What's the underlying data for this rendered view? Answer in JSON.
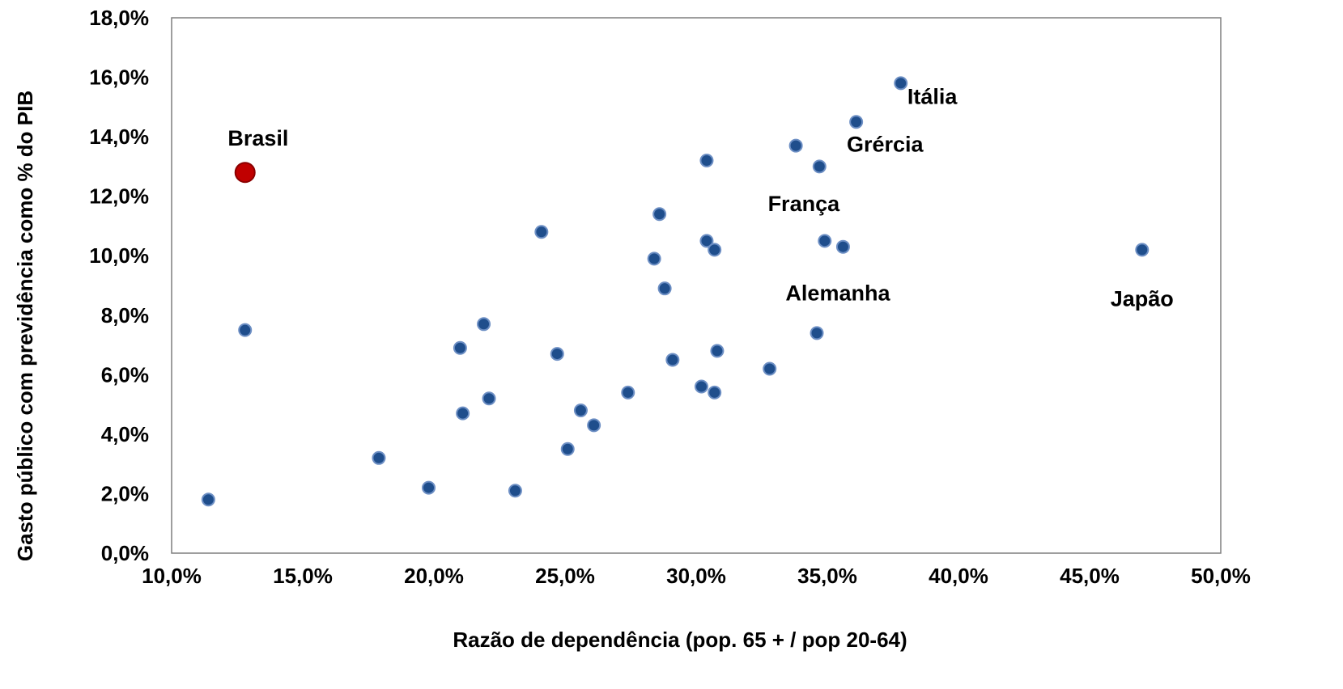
{
  "chart_data": {
    "type": "scatter",
    "xlabel": "Razão de dependência (pop. 65 + / pop 20-64)",
    "ylabel": "Gasto público com previdência como % do PIB",
    "xlim": [
      10,
      50
    ],
    "ylim": [
      0,
      18
    ],
    "x_ticks": [
      "10,0%",
      "15,0%",
      "20,0%",
      "25,0%",
      "30,0%",
      "35,0%",
      "40,0%",
      "45,0%",
      "50,0%"
    ],
    "y_ticks": [
      "0,0%",
      "2,0%",
      "4,0%",
      "6,0%",
      "8,0%",
      "10,0%",
      "12,0%",
      "14,0%",
      "16,0%",
      "18,0%"
    ],
    "grid": false,
    "colors": {
      "default": "#1f4e8c",
      "highlight": "#c00000",
      "outline": "#6d8fc4",
      "frame": "#7f7f7f"
    },
    "points": [
      {
        "x": 11.4,
        "y": 1.8
      },
      {
        "x": 12.8,
        "y": 12.8,
        "label": "Brasil",
        "highlight": true
      },
      {
        "x": 12.8,
        "y": 7.5
      },
      {
        "x": 17.9,
        "y": 3.2
      },
      {
        "x": 19.8,
        "y": 2.2
      },
      {
        "x": 21.0,
        "y": 6.9
      },
      {
        "x": 21.1,
        "y": 4.7
      },
      {
        "x": 21.9,
        "y": 7.7
      },
      {
        "x": 22.1,
        "y": 5.2
      },
      {
        "x": 23.1,
        "y": 2.1
      },
      {
        "x": 24.1,
        "y": 10.8
      },
      {
        "x": 24.7,
        "y": 6.7
      },
      {
        "x": 25.1,
        "y": 3.5
      },
      {
        "x": 25.6,
        "y": 4.8
      },
      {
        "x": 26.1,
        "y": 4.3
      },
      {
        "x": 27.4,
        "y": 5.4
      },
      {
        "x": 28.4,
        "y": 9.9
      },
      {
        "x": 28.6,
        "y": 11.4
      },
      {
        "x": 28.8,
        "y": 8.9
      },
      {
        "x": 29.1,
        "y": 6.5
      },
      {
        "x": 30.2,
        "y": 5.6
      },
      {
        "x": 30.4,
        "y": 13.2
      },
      {
        "x": 30.4,
        "y": 10.5
      },
      {
        "x": 30.7,
        "y": 5.4
      },
      {
        "x": 30.7,
        "y": 10.2
      },
      {
        "x": 30.8,
        "y": 6.8
      },
      {
        "x": 32.8,
        "y": 6.2
      },
      {
        "x": 33.8,
        "y": 13.7
      },
      {
        "x": 34.6,
        "y": 7.4
      },
      {
        "x": 34.7,
        "y": 13.0
      },
      {
        "x": 34.9,
        "y": 10.5
      },
      {
        "x": 35.6,
        "y": 10.3
      },
      {
        "x": 36.1,
        "y": 14.5
      },
      {
        "x": 37.8,
        "y": 15.8
      },
      {
        "x": 47.0,
        "y": 10.2
      }
    ],
    "annotations": [
      {
        "text": "Brasil",
        "x": 13.3,
        "y": 13.7
      },
      {
        "text": "Itália",
        "x": 39.0,
        "y": 15.1
      },
      {
        "text": "Grércia",
        "x": 37.2,
        "y": 13.5
      },
      {
        "text": "França",
        "x": 34.1,
        "y": 11.5
      },
      {
        "text": "Alemanha",
        "x": 35.4,
        "y": 8.5
      },
      {
        "text": "Japão",
        "x": 47.0,
        "y": 8.3
      }
    ]
  }
}
